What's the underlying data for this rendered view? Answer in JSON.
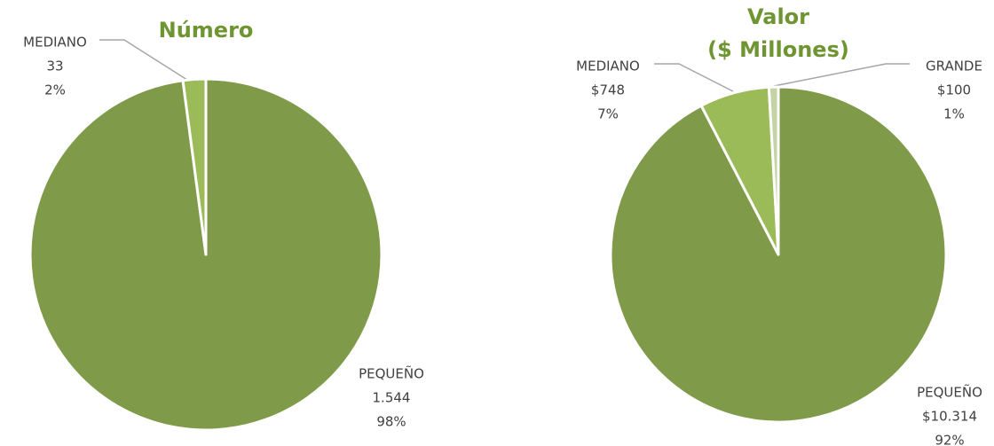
{
  "chart_data": [
    {
      "type": "pie",
      "title": "Número",
      "categories": [
        "PEQUEÑO",
        "MEDIANO"
      ],
      "values": [
        1544,
        33
      ],
      "value_labels": [
        "1.544",
        "33"
      ],
      "percent_labels": [
        "98%",
        "2%"
      ],
      "colors": [
        "#7f9a48",
        "#9bbb59"
      ]
    },
    {
      "type": "pie",
      "title": "Valor",
      "subtitle": "($ Millones)",
      "categories": [
        "PEQUEÑO",
        "MEDIANO",
        "GRANDE"
      ],
      "values": [
        10314,
        748,
        100
      ],
      "value_labels": [
        "$10.314",
        "$748",
        "$100"
      ],
      "percent_labels": [
        "92%",
        "7%",
        "1%"
      ],
      "colors": [
        "#7f9a48",
        "#9bbb59",
        "#c3d3a3"
      ]
    }
  ]
}
